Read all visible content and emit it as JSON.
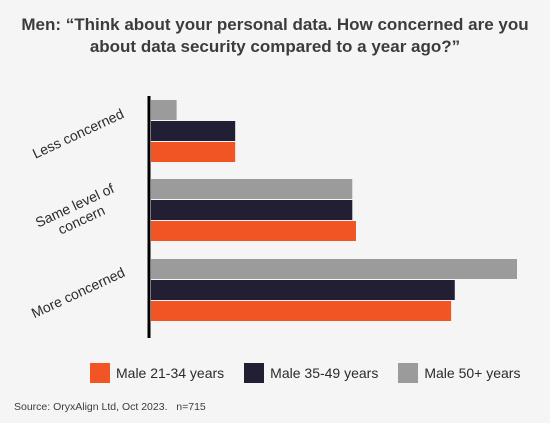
{
  "title_lines": [
    "Men: “Think about your personal data. How concerned are you",
    "about data security compared to a year ago?”"
  ],
  "chart_data": {
    "type": "bar",
    "orientation": "horizontal",
    "categories": [
      "Less concerned",
      "Same level of concern",
      "More concerned"
    ],
    "category_label_lines": [
      [
        "Less concerned"
      ],
      [
        "Same level of",
        "concern"
      ],
      [
        "More concerned"
      ]
    ],
    "series": [
      {
        "name": "Male 50+ years",
        "color": "#9b9b9b",
        "values": [
          7,
          55,
          100
        ]
      },
      {
        "name": "Male 35-49 years",
        "color": "#221f35",
        "values": [
          23,
          55,
          83
        ]
      },
      {
        "name": "Male 21-34 years",
        "color": "#f05523",
        "values": [
          23,
          56,
          82
        ]
      }
    ],
    "xlim": [
      0,
      100
    ],
    "grid": false,
    "legend_position": "bottom"
  },
  "legend": [
    {
      "label": "Male 21-34 years",
      "color": "#f05523"
    },
    {
      "label": "Male 35-49 years",
      "color": "#221f35"
    },
    {
      "label": "Male 50+ years",
      "color": "#9b9b9b"
    }
  ],
  "source": {
    "text": "Source: OryxAlign Ltd, Oct 2023.",
    "n": "n=715"
  }
}
